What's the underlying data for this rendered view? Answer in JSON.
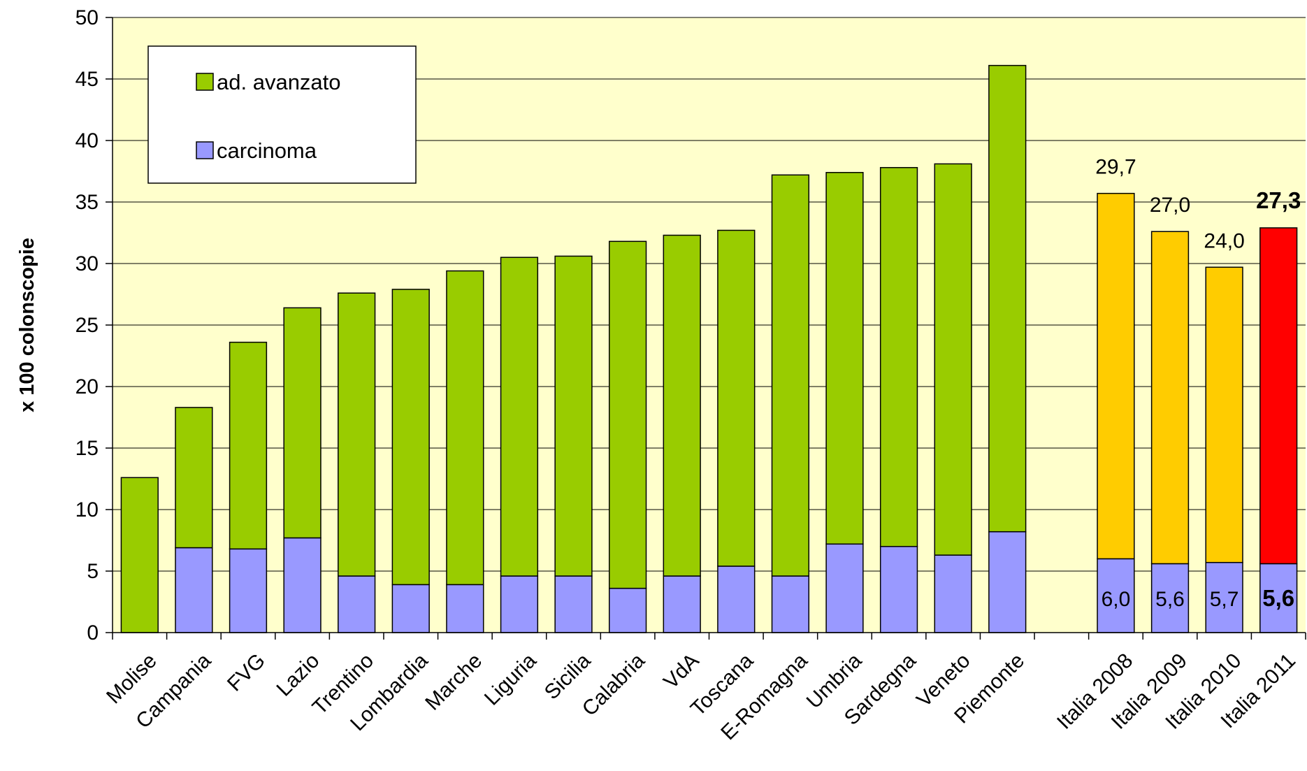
{
  "chart_data": {
    "type": "bar",
    "stacked": true,
    "ylabel": "x 100 colonscopie",
    "ylim": [
      0,
      50
    ],
    "yticks": [
      0,
      5,
      10,
      15,
      20,
      25,
      30,
      35,
      40,
      45,
      50
    ],
    "grid": true,
    "legend_position": "top-left",
    "background_color": "#FFFFCC",
    "categories": [
      "Molise",
      "Campania",
      "FVG",
      "Lazio",
      "Trentino",
      "Lombardia",
      "Marche",
      "Liguria",
      "Sicilia",
      "Calabria",
      "VdA",
      "Toscana",
      "E-Romagna",
      "Umbria",
      "Sardegna",
      "Veneto",
      "Piemonte",
      "",
      "Italia 2008",
      "Italia 2009",
      "Italia 2010",
      "Italia 2011"
    ],
    "series": [
      {
        "name": "carcinoma",
        "color": "#9999FF",
        "values": [
          0,
          6.9,
          6.8,
          7.7,
          4.6,
          3.9,
          3.9,
          4.6,
          4.6,
          3.6,
          4.6,
          5.4,
          4.6,
          7.2,
          7.0,
          6.3,
          8.2,
          null,
          6.0,
          5.6,
          5.7,
          5.6
        ]
      },
      {
        "name": "ad. avanzato",
        "color": "#99CC00",
        "values": [
          12.6,
          11.4,
          16.8,
          18.7,
          23.0,
          24.0,
          25.5,
          25.9,
          26.0,
          28.2,
          27.7,
          27.3,
          32.6,
          30.2,
          30.8,
          31.8,
          37.9,
          null,
          29.7,
          27.0,
          24.0,
          27.3
        ]
      }
    ],
    "bar_colors_override": {
      "Italia 2008": {
        "ad. avanzato": "#FFCC00"
      },
      "Italia 2009": {
        "ad. avanzato": "#FFCC00"
      },
      "Italia 2010": {
        "ad. avanzato": "#FFCC00"
      },
      "Italia 2011": {
        "ad. avanzato": "#FF0000"
      }
    },
    "data_labels": [
      {
        "category": "Italia 2008",
        "top": "29,7",
        "bottom": "6,0",
        "bold": false
      },
      {
        "category": "Italia 2009",
        "top": "27,0",
        "bottom": "5,6",
        "bold": false
      },
      {
        "category": "Italia 2010",
        "top": "24,0",
        "bottom": "5,7",
        "bold": false
      },
      {
        "category": "Italia 2011",
        "top": "27,3",
        "bottom": "5,6",
        "bold": true
      }
    ]
  }
}
